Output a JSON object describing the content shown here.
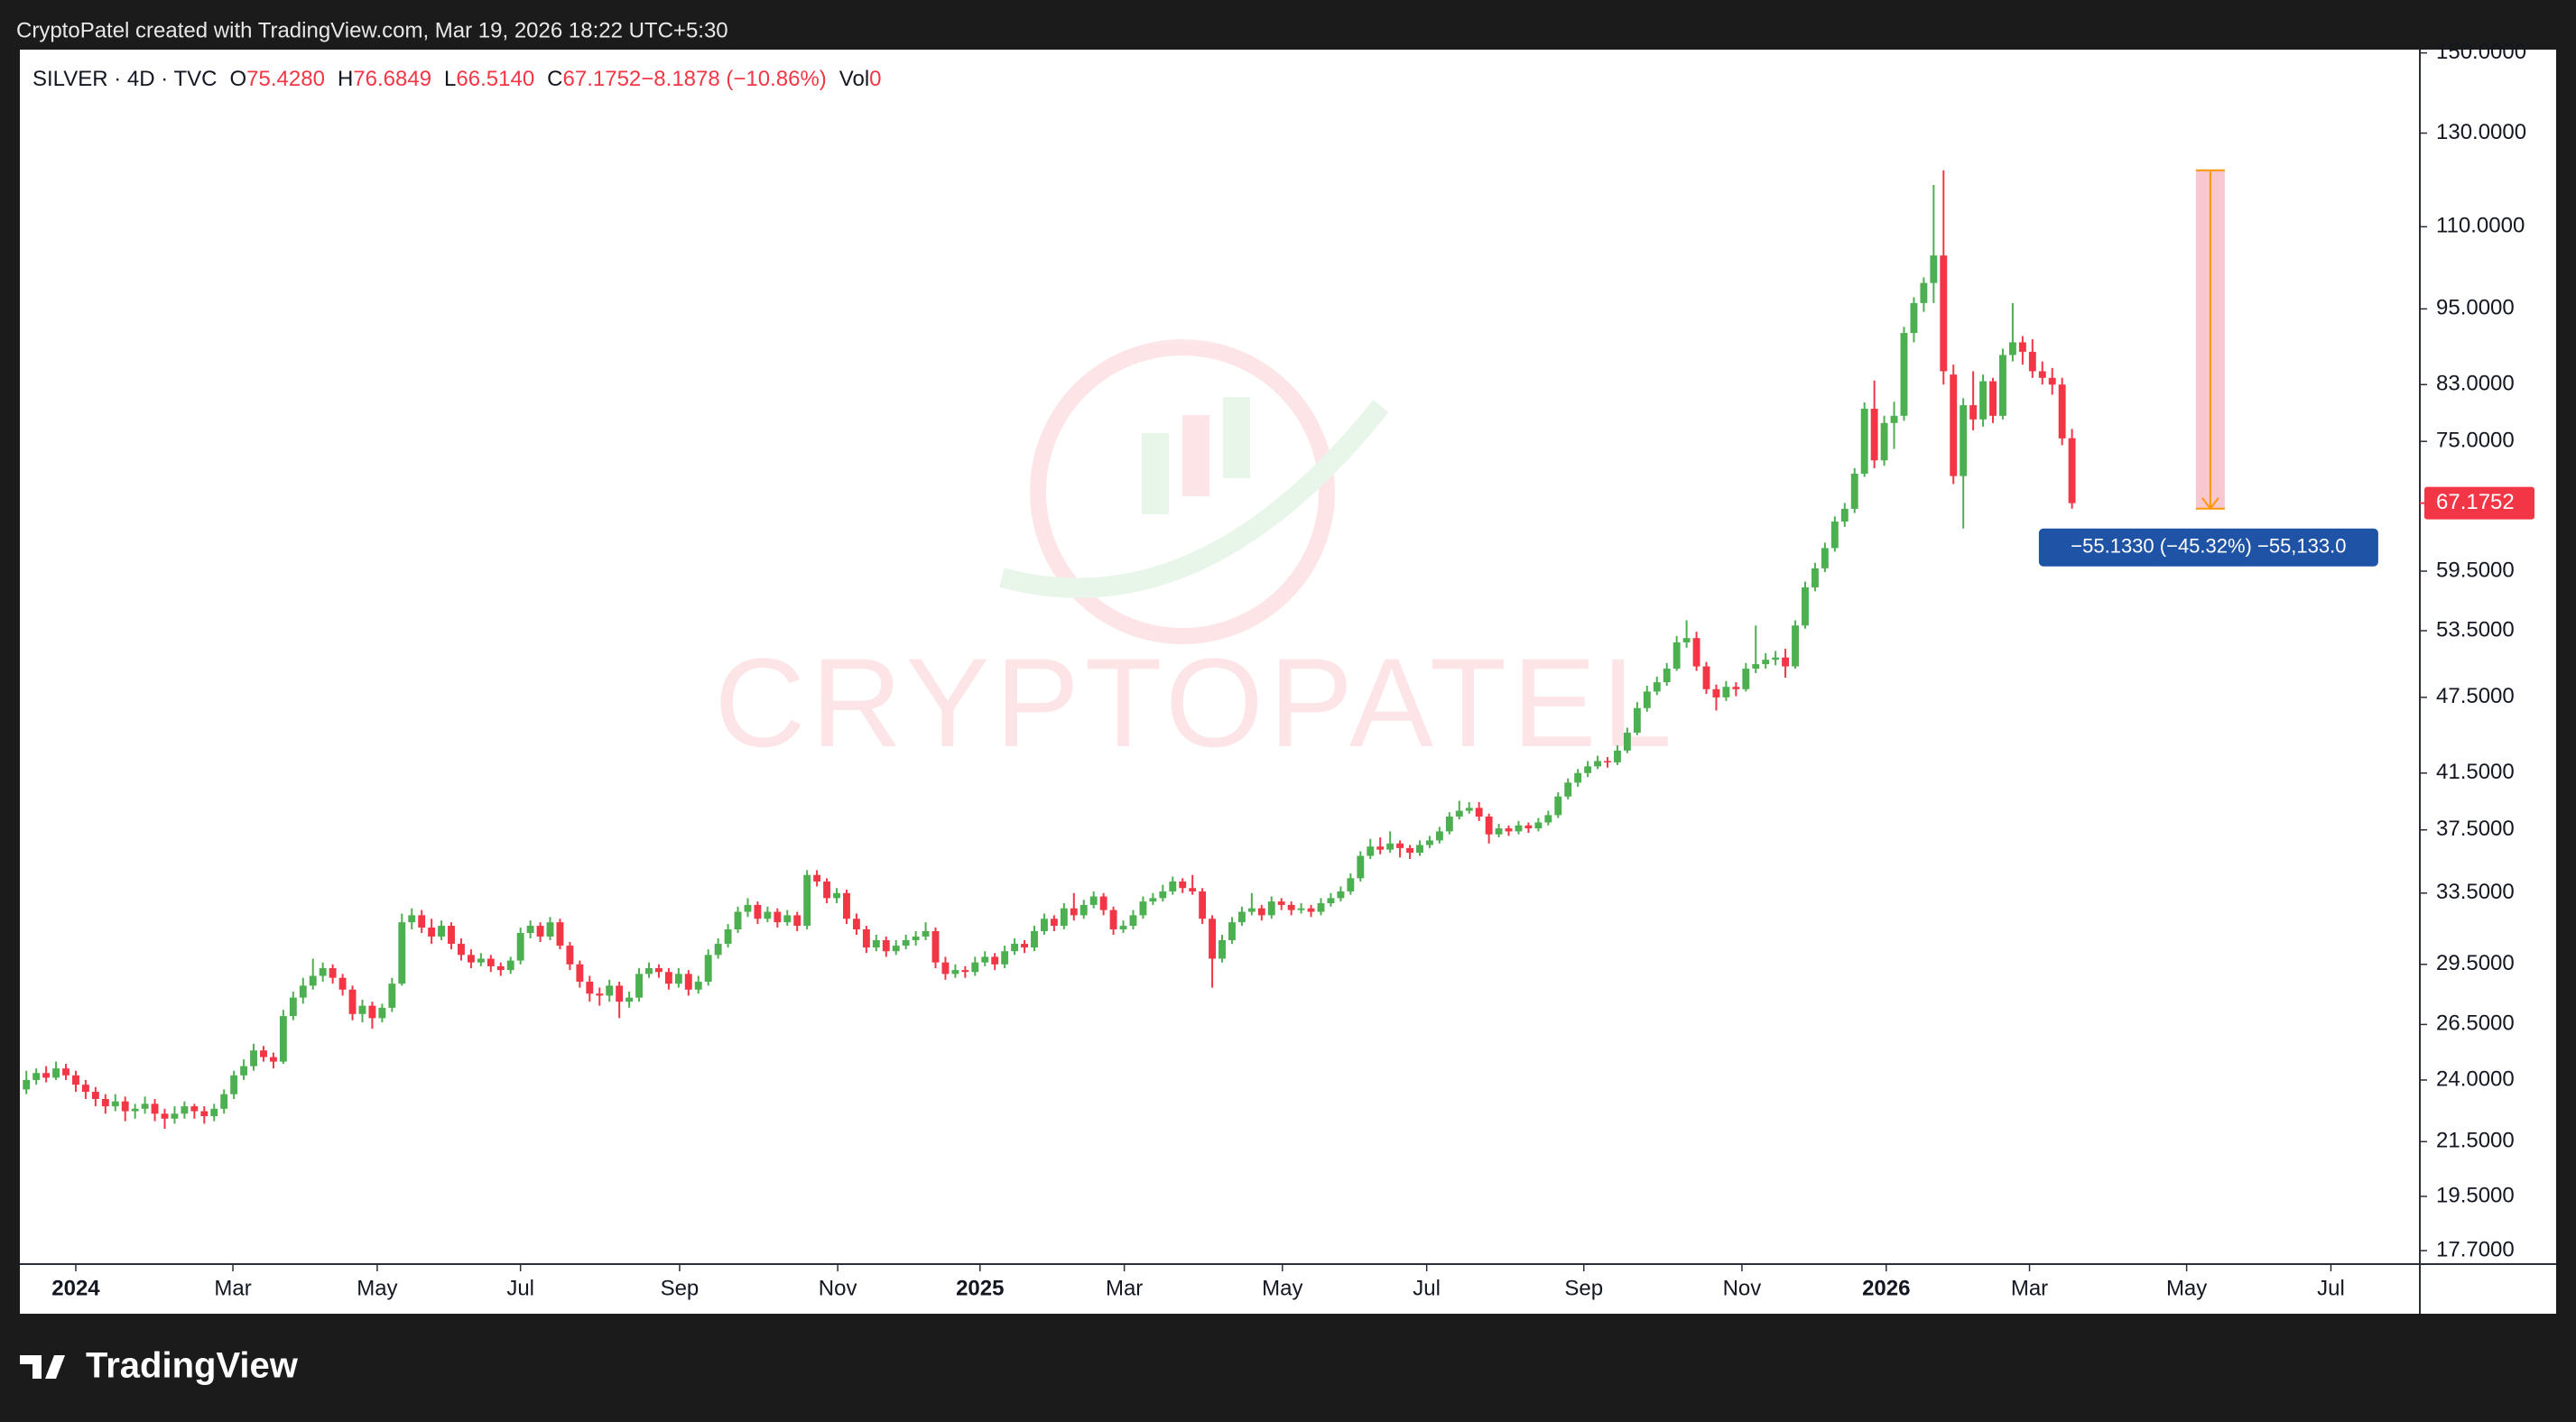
{
  "header": {
    "credit": "CryptoPatel created with TradingView.com, Mar 19, 2026 18:22 UTC+5:30"
  },
  "footer": {
    "brand": "TradingView"
  },
  "chart_data": {
    "type": "candlestick",
    "symbol": "SILVER · 4D · TVC",
    "legend": [
      {
        "key": "O",
        "value": "75.4280"
      },
      {
        "key": "H",
        "value": "76.6849"
      },
      {
        "key": "L",
        "value": "66.5140"
      },
      {
        "key": "C",
        "value": "67.1752"
      },
      {
        "key": "",
        "value": "−8.1878 (−10.86%)"
      },
      {
        "key": "Vol",
        "value": "0"
      }
    ],
    "watermark": "CRYPTOPATEL",
    "up_color": "#4caf50",
    "down_color": "#f23645",
    "log": true,
    "grid": false,
    "ylim": [
      17.28,
      150.88
    ],
    "yticks": [
      {
        "value": 150,
        "label": "150.0000"
      },
      {
        "value": 130,
        "label": "130.0000"
      },
      {
        "value": 110,
        "label": "110.0000"
      },
      {
        "value": 95,
        "label": "95.0000"
      },
      {
        "value": 83,
        "label": "83.0000"
      },
      {
        "value": 75,
        "label": "75.0000"
      },
      {
        "value": 59.5,
        "label": "59.5000"
      },
      {
        "value": 53.5,
        "label": "53.5000"
      },
      {
        "value": 47.5,
        "label": "47.5000"
      },
      {
        "value": 41.5,
        "label": "41.5000"
      },
      {
        "value": 37.5,
        "label": "37.5000"
      },
      {
        "value": 33.5,
        "label": "33.5000"
      },
      {
        "value": 29.5,
        "label": "29.5000"
      },
      {
        "value": 26.5,
        "label": "26.5000"
      },
      {
        "value": 24,
        "label": "24.0000"
      },
      {
        "value": 21.5,
        "label": "21.5000"
      },
      {
        "value": 19.5,
        "label": "19.5000"
      },
      {
        "value": 17.7,
        "label": "17.7000"
      }
    ],
    "last_price": {
      "value": 67.1752,
      "label": "67.1752"
    },
    "xlim": [
      -0.66,
      242.2
    ],
    "xticks": [
      {
        "value": 5.0,
        "label": "2024"
      },
      {
        "value": 20.9,
        "label": "Mar"
      },
      {
        "value": 35.5,
        "label": "May"
      },
      {
        "value": 50.0,
        "label": "Jul"
      },
      {
        "value": 66.1,
        "label": "Sep"
      },
      {
        "value": 82.1,
        "label": "Nov"
      },
      {
        "value": 96.5,
        "label": "2025"
      },
      {
        "value": 111.1,
        "label": "Mar"
      },
      {
        "value": 127.1,
        "label": "May"
      },
      {
        "value": 141.7,
        "label": "Jul"
      },
      {
        "value": 157.6,
        "label": "Sep"
      },
      {
        "value": 173.6,
        "label": "Nov"
      },
      {
        "value": 188.2,
        "label": "2026"
      },
      {
        "value": 202.7,
        "label": "Mar"
      },
      {
        "value": 218.6,
        "label": "May"
      },
      {
        "value": 233.2,
        "label": "Jul"
      }
    ],
    "measure": {
      "x": 221.0,
      "from": 121.647,
      "to": 66.514,
      "label": "−55.1330 (−45.32%) −55,133.0"
    },
    "ohlc": [
      [
        23.6,
        24.4,
        23.4,
        24.0
      ],
      [
        24.0,
        24.5,
        23.8,
        24.3
      ],
      [
        24.3,
        24.6,
        23.9,
        24.1
      ],
      [
        24.1,
        24.8,
        24.0,
        24.5
      ],
      [
        24.5,
        24.7,
        24.0,
        24.2
      ],
      [
        24.2,
        24.4,
        23.5,
        23.8
      ],
      [
        23.8,
        24.0,
        23.2,
        23.5
      ],
      [
        23.5,
        23.7,
        22.9,
        23.2
      ],
      [
        23.2,
        23.4,
        22.6,
        22.9
      ],
      [
        22.9,
        23.4,
        22.7,
        23.1
      ],
      [
        23.1,
        23.3,
        22.3,
        22.7
      ],
      [
        22.7,
        23.0,
        22.4,
        22.8
      ],
      [
        22.8,
        23.3,
        22.6,
        23.0
      ],
      [
        23.0,
        23.2,
        22.3,
        22.6
      ],
      [
        22.6,
        22.8,
        22.0,
        22.4
      ],
      [
        22.4,
        22.9,
        22.2,
        22.6
      ],
      [
        22.6,
        23.1,
        22.4,
        22.9
      ],
      [
        22.9,
        23.0,
        22.4,
        22.7
      ],
      [
        22.7,
        22.9,
        22.2,
        22.5
      ],
      [
        22.5,
        23.0,
        22.3,
        22.8
      ],
      [
        22.8,
        23.6,
        22.6,
        23.4
      ],
      [
        23.4,
        24.4,
        23.2,
        24.2
      ],
      [
        24.2,
        24.9,
        24.0,
        24.6
      ],
      [
        24.6,
        25.6,
        24.4,
        25.3
      ],
      [
        25.3,
        25.5,
        24.8,
        25.0
      ],
      [
        25.0,
        25.2,
        24.5,
        24.8
      ],
      [
        24.8,
        27.2,
        24.7,
        26.9
      ],
      [
        26.9,
        28.1,
        26.7,
        27.8
      ],
      [
        27.8,
        28.8,
        27.5,
        28.4
      ],
      [
        28.4,
        29.8,
        28.2,
        28.9
      ],
      [
        28.9,
        29.6,
        28.6,
        29.3
      ],
      [
        29.3,
        29.5,
        28.5,
        28.8
      ],
      [
        28.8,
        29.0,
        27.9,
        28.2
      ],
      [
        28.2,
        28.4,
        26.7,
        27.0
      ],
      [
        27.0,
        27.7,
        26.6,
        27.4
      ],
      [
        27.4,
        27.6,
        26.3,
        26.8
      ],
      [
        26.8,
        27.5,
        26.6,
        27.3
      ],
      [
        27.3,
        28.8,
        27.1,
        28.5
      ],
      [
        28.5,
        32.3,
        28.4,
        31.8
      ],
      [
        31.8,
        32.6,
        31.4,
        32.2
      ],
      [
        32.2,
        32.5,
        31.2,
        31.5
      ],
      [
        31.5,
        32.0,
        30.6,
        31.0
      ],
      [
        31.0,
        31.9,
        30.8,
        31.6
      ],
      [
        31.6,
        31.8,
        30.3,
        30.6
      ],
      [
        30.6,
        30.9,
        29.7,
        30.0
      ],
      [
        30.0,
        30.3,
        29.3,
        29.6
      ],
      [
        29.6,
        30.1,
        29.4,
        29.8
      ],
      [
        29.8,
        30.0,
        29.1,
        29.4
      ],
      [
        29.4,
        29.6,
        28.9,
        29.2
      ],
      [
        29.2,
        29.9,
        29.0,
        29.7
      ],
      [
        29.7,
        31.5,
        29.5,
        31.2
      ],
      [
        31.2,
        31.9,
        30.9,
        31.6
      ],
      [
        31.6,
        31.8,
        30.7,
        31.0
      ],
      [
        31.0,
        32.1,
        30.8,
        31.8
      ],
      [
        31.8,
        32.0,
        30.3,
        30.5
      ],
      [
        30.5,
        30.7,
        29.2,
        29.5
      ],
      [
        29.5,
        29.7,
        28.3,
        28.6
      ],
      [
        28.6,
        28.9,
        27.6,
        28.0
      ],
      [
        28.0,
        28.3,
        27.4,
        27.9
      ],
      [
        27.9,
        28.7,
        27.6,
        28.4
      ],
      [
        28.4,
        28.6,
        26.8,
        27.6
      ],
      [
        27.6,
        28.1,
        27.3,
        27.8
      ],
      [
        27.8,
        29.3,
        27.6,
        29.0
      ],
      [
        29.0,
        29.6,
        28.8,
        29.3
      ],
      [
        29.3,
        29.5,
        28.8,
        29.1
      ],
      [
        29.1,
        29.3,
        28.2,
        28.5
      ],
      [
        28.5,
        29.3,
        28.3,
        29.0
      ],
      [
        29.0,
        29.2,
        27.9,
        28.2
      ],
      [
        28.2,
        28.9,
        28.0,
        28.6
      ],
      [
        28.6,
        30.3,
        28.4,
        30.0
      ],
      [
        30.0,
        30.9,
        29.8,
        30.6
      ],
      [
        30.6,
        31.7,
        30.4,
        31.4
      ],
      [
        31.4,
        32.7,
        31.2,
        32.4
      ],
      [
        32.4,
        33.2,
        32.1,
        32.8
      ],
      [
        32.8,
        33.0,
        31.7,
        32.0
      ],
      [
        32.0,
        32.7,
        31.8,
        32.4
      ],
      [
        32.4,
        32.6,
        31.5,
        31.8
      ],
      [
        31.8,
        32.5,
        31.6,
        32.2
      ],
      [
        32.2,
        32.4,
        31.3,
        31.6
      ],
      [
        31.6,
        34.9,
        31.4,
        34.6
      ],
      [
        34.6,
        34.9,
        33.9,
        34.2
      ],
      [
        34.2,
        34.4,
        32.9,
        33.2
      ],
      [
        33.2,
        33.8,
        32.9,
        33.5
      ],
      [
        33.5,
        33.7,
        31.7,
        32.0
      ],
      [
        32.0,
        32.3,
        31.1,
        31.4
      ],
      [
        31.4,
        31.6,
        30.1,
        30.4
      ],
      [
        30.4,
        31.1,
        30.2,
        30.8
      ],
      [
        30.8,
        31.0,
        29.9,
        30.2
      ],
      [
        30.2,
        30.8,
        30.0,
        30.5
      ],
      [
        30.5,
        31.1,
        30.3,
        30.8
      ],
      [
        30.8,
        31.3,
        30.5,
        31.0
      ],
      [
        31.0,
        31.8,
        30.8,
        31.3
      ],
      [
        31.3,
        31.5,
        29.3,
        29.6
      ],
      [
        29.6,
        29.9,
        28.7,
        29.0
      ],
      [
        29.0,
        29.5,
        28.8,
        29.2
      ],
      [
        29.2,
        29.4,
        28.8,
        29.1
      ],
      [
        29.1,
        29.9,
        28.9,
        29.6
      ],
      [
        29.6,
        30.2,
        29.4,
        29.9
      ],
      [
        29.9,
        30.1,
        29.2,
        29.5
      ],
      [
        29.5,
        30.5,
        29.3,
        30.2
      ],
      [
        30.2,
        30.9,
        30.0,
        30.6
      ],
      [
        30.6,
        30.8,
        30.1,
        30.4
      ],
      [
        30.4,
        31.6,
        30.2,
        31.3
      ],
      [
        31.3,
        32.3,
        31.1,
        32.0
      ],
      [
        32.0,
        32.2,
        31.3,
        31.6
      ],
      [
        31.6,
        32.9,
        31.4,
        32.6
      ],
      [
        32.6,
        33.5,
        31.9,
        32.2
      ],
      [
        32.2,
        33.1,
        32.0,
        32.8
      ],
      [
        32.8,
        33.6,
        32.6,
        33.3
      ],
      [
        33.3,
        33.5,
        32.2,
        32.5
      ],
      [
        32.5,
        32.7,
        31.1,
        31.4
      ],
      [
        31.4,
        31.9,
        31.2,
        31.6
      ],
      [
        31.6,
        32.5,
        31.4,
        32.2
      ],
      [
        32.2,
        33.3,
        32.0,
        33.0
      ],
      [
        33.0,
        33.5,
        32.8,
        33.2
      ],
      [
        33.2,
        34.0,
        33.0,
        33.6
      ],
      [
        33.6,
        34.5,
        33.4,
        34.2
      ],
      [
        34.2,
        34.4,
        33.5,
        33.8
      ],
      [
        33.8,
        34.6,
        33.4,
        33.6
      ],
      [
        33.6,
        33.8,
        31.7,
        32.0
      ],
      [
        32.0,
        32.2,
        28.3,
        29.8
      ],
      [
        29.8,
        31.1,
        29.6,
        30.8
      ],
      [
        30.8,
        32.1,
        30.6,
        31.8
      ],
      [
        31.8,
        32.7,
        31.6,
        32.4
      ],
      [
        32.4,
        33.5,
        32.2,
        32.6
      ],
      [
        32.6,
        32.8,
        31.9,
        32.2
      ],
      [
        32.2,
        33.3,
        32.0,
        33.0
      ],
      [
        33.0,
        33.2,
        32.5,
        32.8
      ],
      [
        32.8,
        33.0,
        32.2,
        32.5
      ],
      [
        32.5,
        32.9,
        32.3,
        32.6
      ],
      [
        32.6,
        32.8,
        32.1,
        32.4
      ],
      [
        32.4,
        33.2,
        32.2,
        32.9
      ],
      [
        32.9,
        33.5,
        32.7,
        33.2
      ],
      [
        33.2,
        33.9,
        33.0,
        33.6
      ],
      [
        33.6,
        34.7,
        33.4,
        34.4
      ],
      [
        34.4,
        36.1,
        34.2,
        35.8
      ],
      [
        35.8,
        36.9,
        35.6,
        36.4
      ],
      [
        36.4,
        37.0,
        35.9,
        36.2
      ],
      [
        36.2,
        37.4,
        36.0,
        36.6
      ],
      [
        36.6,
        36.8,
        35.7,
        36.3
      ],
      [
        36.3,
        36.5,
        35.6,
        36.0
      ],
      [
        36.0,
        36.8,
        35.8,
        36.5
      ],
      [
        36.5,
        37.1,
        36.3,
        36.8
      ],
      [
        36.8,
        37.7,
        36.6,
        37.4
      ],
      [
        37.4,
        38.7,
        37.2,
        38.4
      ],
      [
        38.4,
        39.5,
        38.2,
        38.8
      ],
      [
        38.8,
        39.4,
        38.6,
        39.0
      ],
      [
        39.0,
        39.4,
        38.1,
        38.4
      ],
      [
        38.4,
        38.6,
        36.6,
        37.2
      ],
      [
        37.2,
        37.9,
        37.0,
        37.6
      ],
      [
        37.6,
        37.8,
        37.1,
        37.4
      ],
      [
        37.4,
        38.1,
        37.2,
        37.8
      ],
      [
        37.8,
        38.0,
        37.3,
        37.6
      ],
      [
        37.6,
        38.3,
        37.4,
        38.0
      ],
      [
        38.0,
        38.8,
        37.8,
        38.5
      ],
      [
        38.5,
        40.1,
        38.3,
        39.8
      ],
      [
        39.8,
        41.1,
        39.6,
        40.8
      ],
      [
        40.8,
        41.8,
        40.5,
        41.5
      ],
      [
        41.5,
        42.4,
        41.2,
        42.0
      ],
      [
        42.0,
        42.8,
        41.8,
        42.4
      ],
      [
        42.4,
        42.7,
        41.9,
        42.3
      ],
      [
        42.3,
        43.6,
        42.1,
        43.2
      ],
      [
        43.2,
        45.0,
        43.0,
        44.6
      ],
      [
        44.6,
        47.1,
        44.4,
        46.6
      ],
      [
        46.6,
        48.5,
        46.3,
        48.0
      ],
      [
        48.0,
        49.3,
        47.7,
        48.8
      ],
      [
        48.8,
        50.5,
        48.5,
        50.0
      ],
      [
        50.0,
        53.0,
        49.8,
        52.4
      ],
      [
        52.4,
        54.5,
        51.9,
        52.8
      ],
      [
        52.8,
        53.4,
        49.8,
        50.2
      ],
      [
        50.2,
        50.6,
        47.8,
        48.2
      ],
      [
        48.2,
        48.6,
        46.4,
        47.5
      ],
      [
        47.5,
        48.9,
        47.2,
        48.4
      ],
      [
        48.4,
        48.8,
        47.6,
        48.2
      ],
      [
        48.2,
        50.5,
        48.0,
        50.0
      ],
      [
        50.0,
        54.0,
        49.6,
        50.4
      ],
      [
        50.4,
        51.4,
        50.0,
        50.8
      ],
      [
        50.8,
        51.6,
        50.3,
        51.0
      ],
      [
        51.0,
        51.8,
        49.2,
        50.2
      ],
      [
        50.2,
        54.5,
        50.0,
        54.0
      ],
      [
        54.0,
        58.4,
        53.7,
        57.8
      ],
      [
        57.8,
        60.4,
        57.4,
        59.8
      ],
      [
        59.8,
        62.6,
        59.4,
        62.0
      ],
      [
        62.0,
        65.6,
        61.6,
        65.0
      ],
      [
        65.0,
        67.2,
        64.4,
        66.5
      ],
      [
        66.5,
        71.5,
        66.0,
        70.8
      ],
      [
        70.8,
        80.4,
        70.4,
        79.5
      ],
      [
        79.5,
        83.6,
        71.5,
        72.5
      ],
      [
        72.5,
        78.5,
        71.8,
        77.5
      ],
      [
        77.5,
        80.5,
        74.0,
        78.5
      ],
      [
        78.5,
        92.0,
        77.8,
        91.0
      ],
      [
        91.0,
        97.0,
        89.5,
        96.0
      ],
      [
        96.0,
        100.5,
        94.5,
        99.5
      ],
      [
        99.5,
        118.5,
        96.0,
        104.5
      ],
      [
        104.5,
        121.647,
        83.0,
        85.0
      ],
      [
        84.5,
        86.0,
        69.5,
        70.5
      ],
      [
        70.5,
        81.0,
        64.2,
        80.0
      ],
      [
        80.0,
        85.0,
        76.5,
        78.0
      ],
      [
        78.0,
        84.5,
        77.0,
        83.5
      ],
      [
        83.5,
        84.0,
        77.5,
        78.5
      ],
      [
        78.5,
        88.5,
        78.0,
        87.5
      ],
      [
        87.5,
        96.0,
        86.5,
        89.5
      ],
      [
        89.5,
        90.5,
        86.0,
        88.0
      ],
      [
        88.0,
        90.0,
        84.0,
        85.0
      ],
      [
        85.0,
        86.5,
        83.0,
        84.0
      ],
      [
        84.0,
        85.5,
        81.5,
        83.0
      ],
      [
        83.0,
        84.0,
        74.5,
        75.4
      ],
      [
        75.428,
        76.6849,
        66.514,
        67.1752
      ]
    ]
  }
}
